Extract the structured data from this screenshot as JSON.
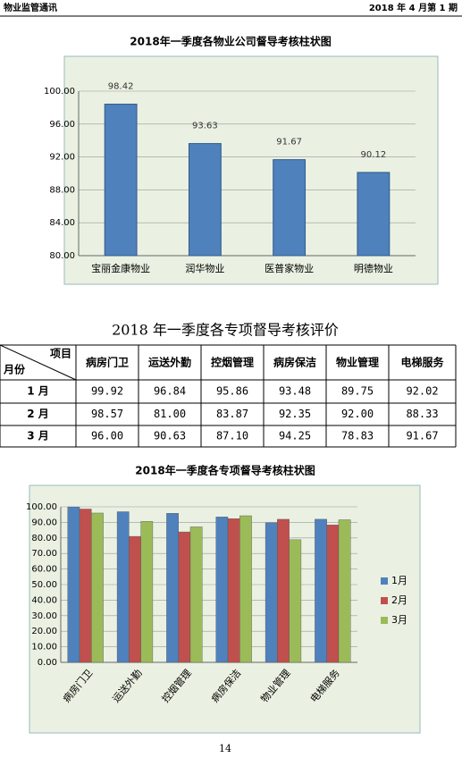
{
  "header": {
    "left": "物业监管通讯",
    "right": "2018 年 4 月第 1 期"
  },
  "chart_data": [
    {
      "type": "bar",
      "title": "2018年一季度各物业公司督导考核柱状图",
      "categories": [
        "宝丽金康物业",
        "润华物业",
        "医普家物业",
        "明德物业"
      ],
      "values": [
        98.42,
        93.63,
        91.67,
        90.12
      ],
      "color": "#4f81bd",
      "ylim": [
        80,
        100
      ],
      "yticks": [
        {
          "value": 80,
          "label": "80.00"
        },
        {
          "value": 84,
          "label": "84.00"
        },
        {
          "value": 88,
          "label": "88.00"
        },
        {
          "value": 92,
          "label": "92.00"
        },
        {
          "value": 96,
          "label": "96.00"
        },
        {
          "value": 100,
          "label": "100.00"
        }
      ],
      "grid": true
    },
    {
      "type": "grouped_bar",
      "title": "2018年一季度各专项督导考核柱状图",
      "categories": [
        "病房门卫",
        "运送外勤",
        "控烟管理",
        "病房保洁",
        "物业管理",
        "电梯服务"
      ],
      "series": [
        {
          "name": "1月",
          "color": "#4f81bd",
          "values": [
            99.92,
            96.84,
            95.86,
            93.48,
            89.75,
            92.02
          ]
        },
        {
          "name": "2月",
          "color": "#c0504d",
          "values": [
            98.57,
            81,
            83.87,
            92.35,
            92,
            88.33
          ]
        },
        {
          "name": "3月",
          "color": "#9bbb59",
          "values": [
            96,
            90.63,
            87.1,
            94.25,
            78.83,
            91.67
          ]
        }
      ],
      "ylim": [
        0,
        100
      ],
      "yticks": [
        {
          "value": 0,
          "label": "0.00"
        },
        {
          "value": 10,
          "label": "10.00"
        },
        {
          "value": 20,
          "label": "20.00"
        },
        {
          "value": 30,
          "label": "30.00"
        },
        {
          "value": 40,
          "label": "40.00"
        },
        {
          "value": 50,
          "label": "50.00"
        },
        {
          "value": 60,
          "label": "60.00"
        },
        {
          "value": 70,
          "label": "70.00"
        },
        {
          "value": 80,
          "label": "80.00"
        },
        {
          "value": 90,
          "label": "90.00"
        },
        {
          "value": 100,
          "label": "100.00"
        }
      ],
      "grid": true,
      "legend": "right"
    }
  ],
  "table": {
    "title": "2018 年一季度各专项督导考核评价",
    "corner_top": "项目",
    "corner_bottom": "月份",
    "columns": [
      "病房门卫",
      "运送外勤",
      "控烟管理",
      "病房保洁",
      "物业管理",
      "电梯服务"
    ],
    "rows": [
      [
        "1 月",
        "99.92",
        "96.84",
        "95.86",
        "93.48",
        "89.75",
        "92.02"
      ],
      [
        "2 月",
        "98.57",
        "81.00",
        "83.87",
        "92.35",
        "92.00",
        "88.33"
      ],
      [
        "3 月",
        "96.00",
        "90.63",
        "87.10",
        "94.25",
        "78.83",
        "91.67"
      ]
    ]
  },
  "page_number": "14"
}
